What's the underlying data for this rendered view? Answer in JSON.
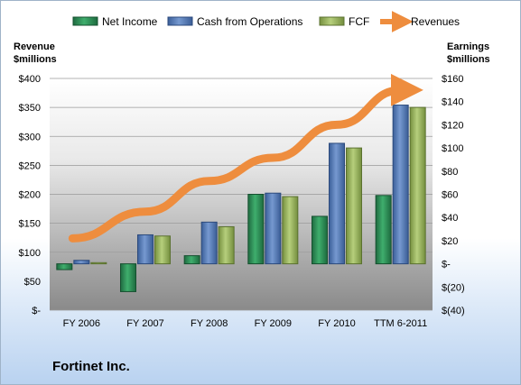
{
  "company": "Fortinet Inc.",
  "chart_data": {
    "type": "bar",
    "categories": [
      "FY 2006",
      "FY 2007",
      "FY 2008",
      "FY 2009",
      "FY 2010",
      "TTM 6-2011"
    ],
    "series": [
      {
        "name": "Net Income",
        "axis": "right",
        "color": "#2e8b57",
        "values": [
          -5,
          -24,
          7,
          60,
          41,
          59
        ]
      },
      {
        "name": "Cash from Operations",
        "axis": "right",
        "color": "#4f79b8",
        "values": [
          3,
          25,
          36,
          61,
          104,
          137
        ]
      },
      {
        "name": "FCF",
        "axis": "right",
        "color": "#98b45c",
        "values": [
          1,
          24,
          32,
          58,
          100,
          135
        ]
      },
      {
        "name": "Revenues",
        "axis": "left",
        "type": "line",
        "color": "#ee8d3e",
        "values": [
          124,
          170,
          223,
          263,
          320,
          380
        ]
      }
    ],
    "left_axis": {
      "label": [
        "Revenue",
        "$millions"
      ],
      "ylim": [
        0,
        400
      ],
      "ticks": [
        0,
        50,
        100,
        150,
        200,
        250,
        300,
        350,
        400
      ],
      "tick_labels": [
        "$-",
        "$50",
        "$100",
        "$150",
        "$200",
        "$250",
        "$300",
        "$350",
        "$400"
      ]
    },
    "right_axis": {
      "label": [
        "Earnings",
        "$millions"
      ],
      "ylim": [
        -40,
        160
      ],
      "ticks": [
        -40,
        -20,
        0,
        20,
        40,
        60,
        80,
        100,
        120,
        140,
        160
      ],
      "tick_labels": [
        "$(40)",
        "$(20)",
        "$-",
        "$20",
        "$40",
        "$60",
        "$80",
        "$100",
        "$120",
        "$140",
        "$160"
      ]
    },
    "legend_position": "top",
    "grid": true
  }
}
